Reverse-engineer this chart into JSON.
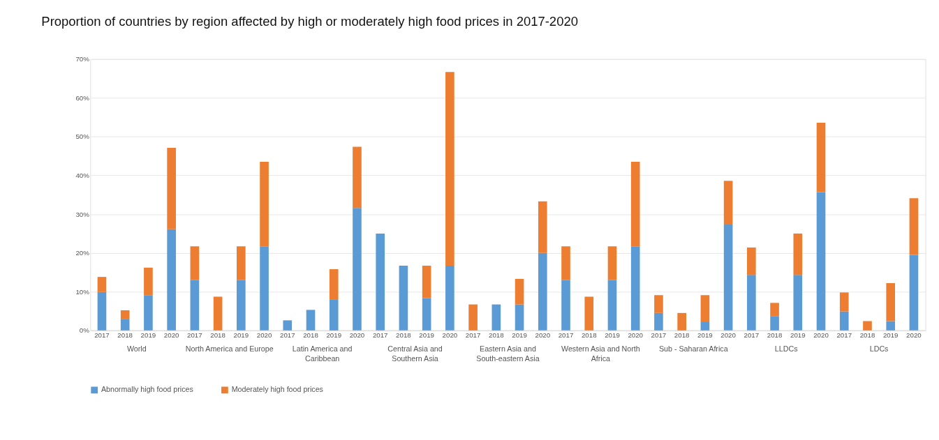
{
  "chart_data": {
    "type": "bar",
    "title": "Proportion of countries by region affected by high or moderately high food prices in 2017-2020",
    "categories": [
      "2017",
      "2018",
      "2019",
      "2020",
      "2017",
      "2018",
      "2019",
      "2020",
      "2017",
      "2018",
      "2019",
      "2020",
      "2017",
      "2018",
      "2019",
      "2020",
      "2017",
      "2018",
      "2019",
      "2020",
      "2017",
      "2018",
      "2019",
      "2020",
      "2017",
      "2018",
      "2019",
      "2020",
      "2017",
      "2018",
      "2019",
      "2020",
      "2017",
      "2018",
      "2019",
      "2020"
    ],
    "annotations": [
      "World",
      "North America and Europe",
      "Latin America and Caribbean",
      "Central Asia and Southern Asia",
      "Eastern Asia and South-eastern Asia",
      "Western Asia and North Africa",
      "Sub - Saharan Africa",
      "LLDCs",
      "LDCs"
    ],
    "stacked": true,
    "series": [
      {
        "name": "Abnormally high food prices",
        "color": "#5b9bd5",
        "values": [
          9.9,
          3.0,
          9.1,
          26.1,
          13.0,
          0,
          13.0,
          21.7,
          2.6,
          5.3,
          7.9,
          31.6,
          25.0,
          16.7,
          8.3,
          16.7,
          0,
          6.7,
          6.7,
          20.0,
          13.0,
          0,
          13.0,
          21.7,
          4.5,
          0,
          2.3,
          27.3,
          14.3,
          3.6,
          14.3,
          35.7,
          4.9,
          0,
          2.4,
          19.5
        ]
      },
      {
        "name": "Moderately high food prices",
        "color": "#ed7d31",
        "values": [
          3.9,
          2.2,
          7.1,
          21.0,
          8.7,
          8.7,
          8.7,
          21.8,
          0,
          0,
          7.9,
          15.8,
          0,
          0,
          8.4,
          50.0,
          6.7,
          0,
          6.6,
          13.3,
          8.7,
          8.7,
          8.7,
          21.8,
          4.6,
          4.5,
          6.8,
          11.3,
          7.1,
          3.5,
          10.7,
          17.9,
          4.9,
          2.4,
          9.8,
          14.6
        ]
      }
    ],
    "ylim": [
      0,
      70
    ],
    "yticks": [
      {
        "value": 0,
        "label": "0%"
      },
      {
        "value": 10,
        "label": "10%"
      },
      {
        "value": 20,
        "label": "20%"
      },
      {
        "value": 30,
        "label": "30%"
      },
      {
        "value": 40,
        "label": "40%"
      },
      {
        "value": 50,
        "label": "50%"
      },
      {
        "value": 60,
        "label": "60%"
      },
      {
        "value": 70,
        "label": "70%"
      }
    ],
    "grid": "y",
    "legend": "bottom"
  }
}
